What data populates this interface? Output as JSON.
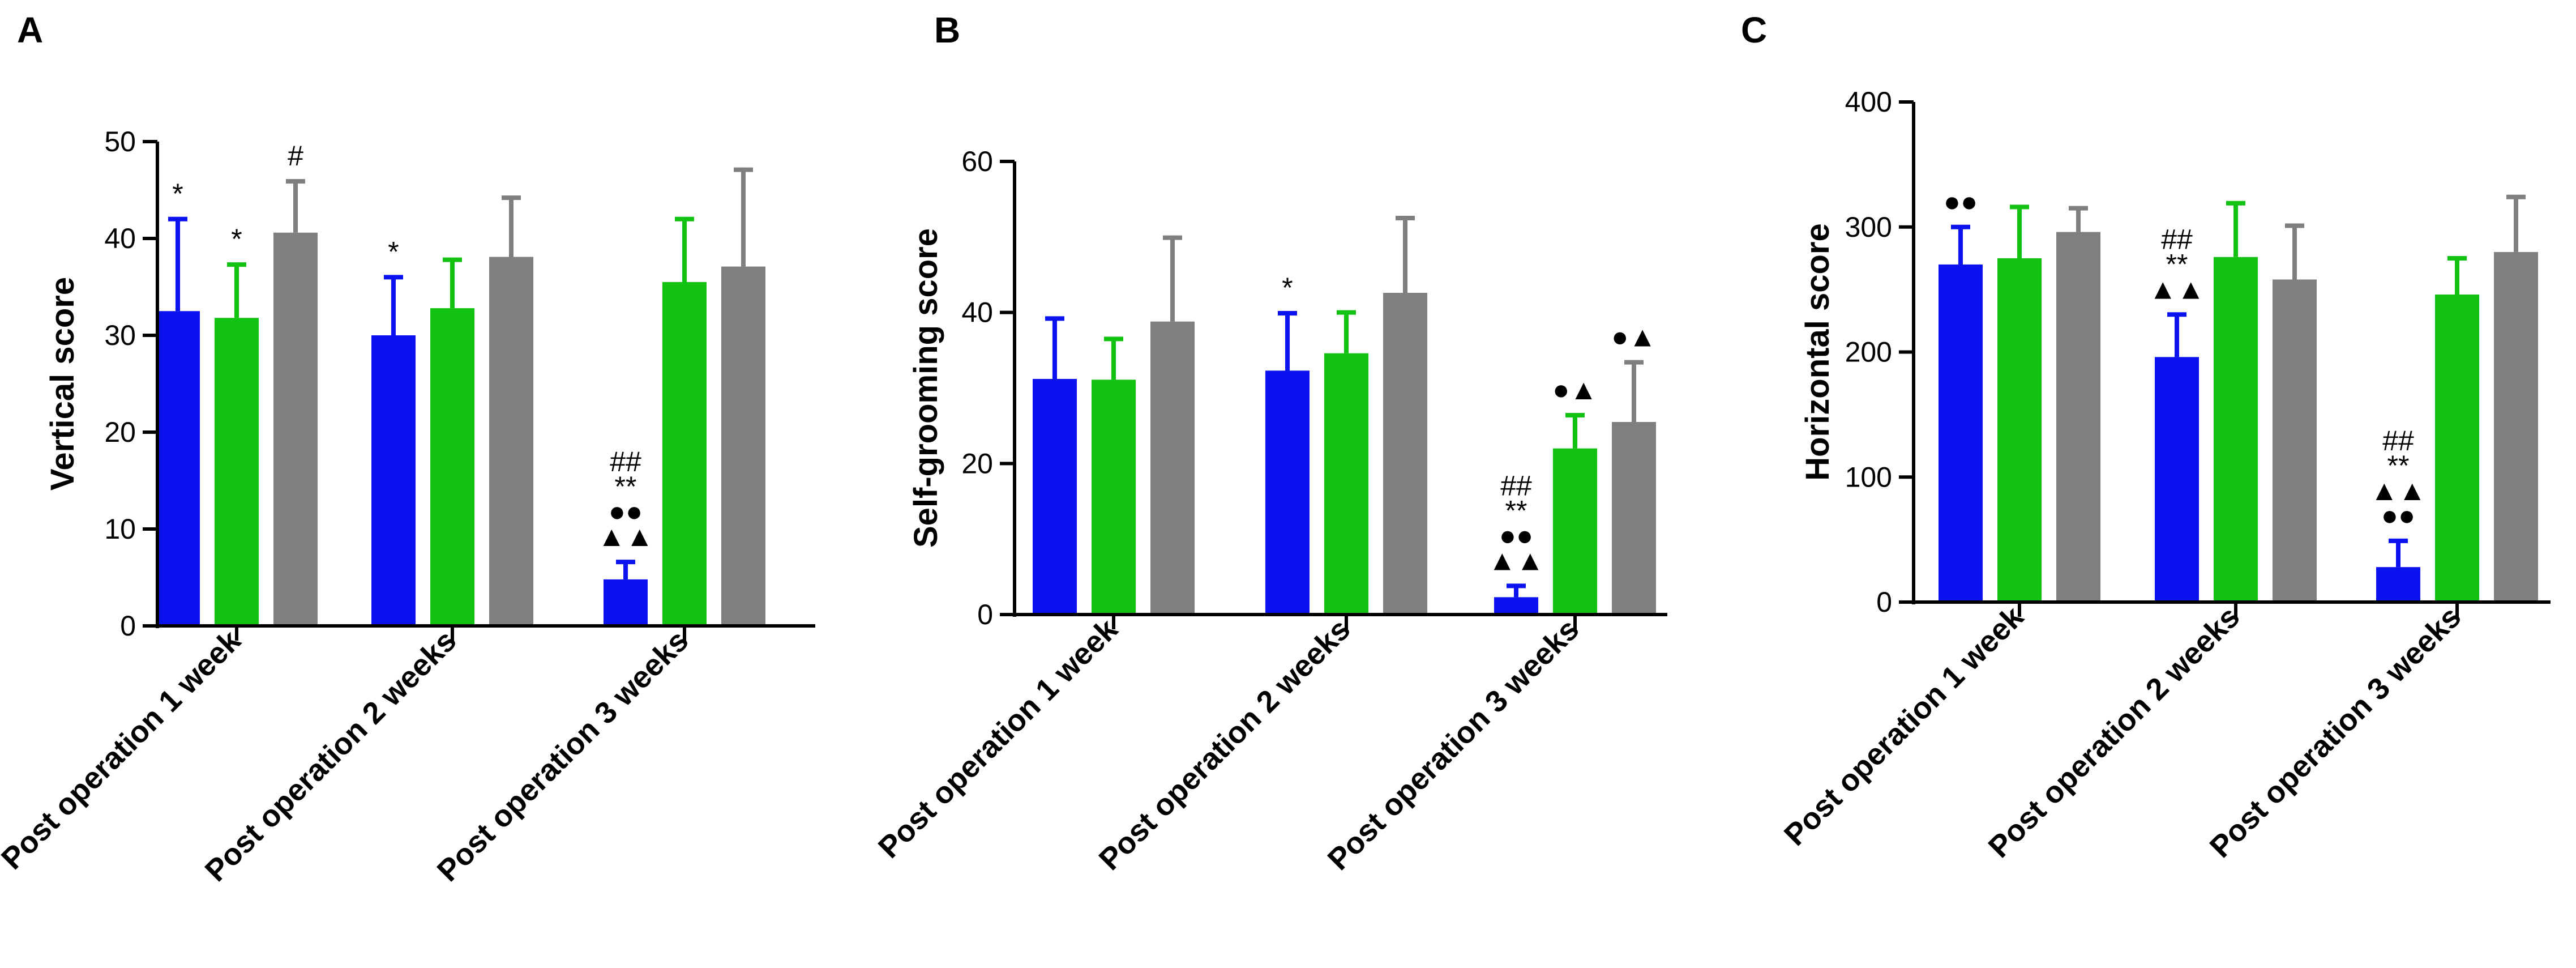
{
  "colors": {
    "series": [
      "#0a12f0",
      "#12c212",
      "#7f7f7f"
    ],
    "axis": "#000000"
  },
  "chart_data": [
    {
      "panel": "A",
      "type": "bar",
      "ylabel": "Vertical score",
      "ylim": [
        0,
        50
      ],
      "yticks": [
        0,
        10,
        20,
        30,
        40,
        50
      ],
      "categories": [
        "Post operation 1 week",
        "Post operation 2 weeks",
        "Post operation 3 weeks"
      ],
      "series": [
        {
          "values": [
            32.5,
            30.0,
            4.8
          ],
          "errors": [
            9.5,
            6.0,
            1.8
          ],
          "annotations": [
            [
              "*"
            ],
            [
              "*"
            ],
            [
              "▲▲",
              "●●",
              "**",
              "##"
            ]
          ]
        },
        {
          "values": [
            31.8,
            32.8,
            35.5
          ],
          "errors": [
            5.5,
            5.0,
            6.5
          ],
          "annotations": [
            [
              "*"
            ],
            [],
            []
          ]
        },
        {
          "values": [
            40.6,
            38.1,
            37.1
          ],
          "errors": [
            5.3,
            6.1,
            10.0
          ],
          "annotations": [
            [
              "#"
            ],
            [],
            []
          ]
        }
      ]
    },
    {
      "panel": "B",
      "type": "bar",
      "ylabel": "Self-grooming score",
      "ylim": [
        0,
        60
      ],
      "yticks": [
        0,
        20,
        40,
        60
      ],
      "categories": [
        "Post operation 1 week",
        "Post operation 2 weeks",
        "Post operation 3 weeks"
      ],
      "series": [
        {
          "values": [
            31.2,
            32.3,
            2.3
          ],
          "errors": [
            8.0,
            7.6,
            1.5
          ],
          "annotations": [
            [],
            [
              "*"
            ],
            [
              "▲▲",
              "●●",
              "**",
              "##"
            ]
          ]
        },
        {
          "values": [
            31.1,
            34.6,
            22.0
          ],
          "errors": [
            5.4,
            5.4,
            4.4
          ],
          "annotations": [
            [],
            [],
            [
              "●▲"
            ]
          ]
        },
        {
          "values": [
            38.8,
            42.6,
            25.5
          ],
          "errors": [
            11.1,
            9.9,
            7.9
          ],
          "annotations": [
            [],
            [],
            [
              "●▲"
            ]
          ]
        }
      ]
    },
    {
      "panel": "C",
      "type": "bar",
      "ylabel": "Horizontal score",
      "ylim": [
        0,
        400
      ],
      "yticks": [
        0,
        100,
        200,
        300,
        400
      ],
      "categories": [
        "Post operation 1 week",
        "Post operation 2 weeks",
        "Post operation 3 weeks"
      ],
      "series": [
        {
          "values": [
            270,
            196,
            28
          ],
          "errors": [
            30,
            34,
            21
          ],
          "annotations": [
            [
              "●●"
            ],
            [
              "▲▲",
              "**",
              "##"
            ],
            [
              "●●",
              "▲▲",
              "**",
              "##"
            ]
          ]
        },
        {
          "values": [
            275,
            276,
            246
          ],
          "errors": [
            41,
            43,
            29
          ],
          "annotations": [
            [],
            [],
            []
          ]
        },
        {
          "values": [
            296,
            258,
            280
          ],
          "errors": [
            19,
            43,
            44
          ],
          "annotations": [
            [],
            [],
            []
          ]
        }
      ]
    }
  ]
}
